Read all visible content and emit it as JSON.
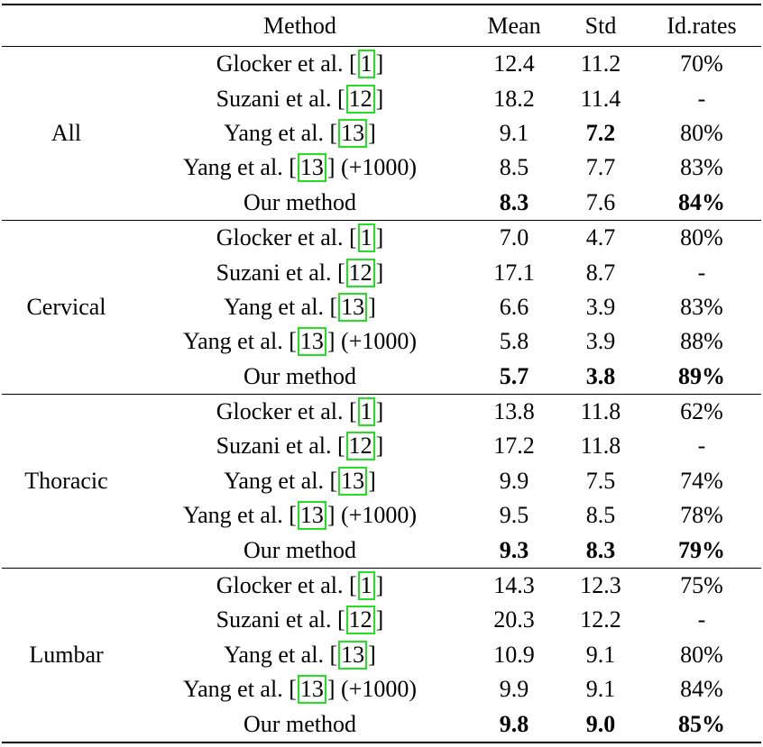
{
  "header": {
    "category": "",
    "method": "Method",
    "mean": "Mean",
    "std": "Std",
    "id_rates": "Id.rates"
  },
  "cite_color": "#22e022",
  "groups": [
    {
      "name": "All",
      "rows": [
        {
          "method": "Glocker et al.",
          "cite": "1",
          "suffix": "",
          "mean": "12.4",
          "std": "11.2",
          "id": "70%",
          "bold": []
        },
        {
          "method": "Suzani et al.",
          "cite": "12",
          "suffix": "",
          "mean": "18.2",
          "std": "11.4",
          "id": "-",
          "bold": []
        },
        {
          "method": "Yang et al.",
          "cite": "13",
          "suffix": "",
          "mean": "9.1",
          "std": "7.2",
          "id": "80%",
          "bold": [
            "std"
          ]
        },
        {
          "method": "Yang et al.",
          "cite": "13",
          "suffix": "(+1000)",
          "mean": "8.5",
          "std": "7.7",
          "id": "83%",
          "bold": []
        },
        {
          "method": "Our method",
          "cite": "",
          "suffix": "",
          "mean": "8.3",
          "std": "7.6",
          "id": "84%",
          "bold": [
            "mean",
            "id"
          ]
        }
      ]
    },
    {
      "name": "Cervical",
      "rows": [
        {
          "method": "Glocker et al.",
          "cite": "1",
          "suffix": "",
          "mean": "7.0",
          "std": "4.7",
          "id": "80%",
          "bold": []
        },
        {
          "method": "Suzani et al.",
          "cite": "12",
          "suffix": "",
          "mean": "17.1",
          "std": "8.7",
          "id": "-",
          "bold": []
        },
        {
          "method": "Yang et al.",
          "cite": "13",
          "suffix": "",
          "mean": "6.6",
          "std": "3.9",
          "id": "83%",
          "bold": []
        },
        {
          "method": "Yang et al.",
          "cite": "13",
          "suffix": "(+1000)",
          "mean": "5.8",
          "std": "3.9",
          "id": "88%",
          "bold": []
        },
        {
          "method": "Our method",
          "cite": "",
          "suffix": "",
          "mean": "5.7",
          "std": "3.8",
          "id": "89%",
          "bold": [
            "mean",
            "std",
            "id"
          ]
        }
      ]
    },
    {
      "name": "Thoracic",
      "rows": [
        {
          "method": "Glocker et al.",
          "cite": "1",
          "suffix": "",
          "mean": "13.8",
          "std": "11.8",
          "id": "62%",
          "bold": []
        },
        {
          "method": "Suzani et al.",
          "cite": "12",
          "suffix": "",
          "mean": "17.2",
          "std": "11.8",
          "id": "-",
          "bold": []
        },
        {
          "method": "Yang et al.",
          "cite": "13",
          "suffix": "",
          "mean": "9.9",
          "std": "7.5",
          "id": "74%",
          "bold": []
        },
        {
          "method": "Yang et al.",
          "cite": "13",
          "suffix": "(+1000)",
          "mean": "9.5",
          "std": "8.5",
          "id": "78%",
          "bold": []
        },
        {
          "method": "Our method",
          "cite": "",
          "suffix": "",
          "mean": "9.3",
          "std": "8.3",
          "id": "79%",
          "bold": [
            "mean",
            "std",
            "id"
          ]
        }
      ]
    },
    {
      "name": "Lumbar",
      "rows": [
        {
          "method": "Glocker et al.",
          "cite": "1",
          "suffix": "",
          "mean": "14.3",
          "std": "12.3",
          "id": "75%",
          "bold": []
        },
        {
          "method": "Suzani et al.",
          "cite": "12",
          "suffix": "",
          "mean": "20.3",
          "std": "12.2",
          "id": "-",
          "bold": []
        },
        {
          "method": "Yang et al.",
          "cite": "13",
          "suffix": "",
          "mean": "10.9",
          "std": "9.1",
          "id": "80%",
          "bold": []
        },
        {
          "method": "Yang et al.",
          "cite": "13",
          "suffix": "(+1000)",
          "mean": "9.9",
          "std": "9.1",
          "id": "84%",
          "bold": []
        },
        {
          "method": "Our method",
          "cite": "",
          "suffix": "",
          "mean": "9.8",
          "std": "9.0",
          "id": "85%",
          "bold": [
            "mean",
            "std",
            "id"
          ]
        }
      ]
    }
  ]
}
